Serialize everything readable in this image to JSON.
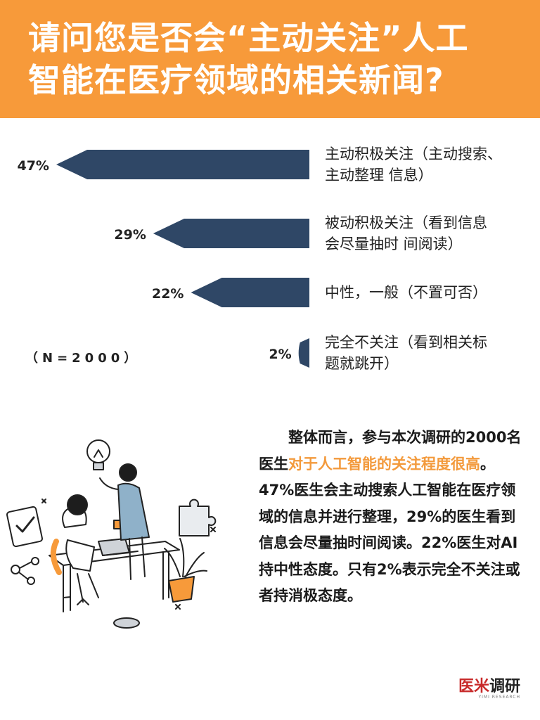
{
  "header": {
    "title_line1": "请问您是否会“主动关注”人工",
    "title_line2": "智能在医疗领域的相关新闻?"
  },
  "chart_data": {
    "type": "bar",
    "orientation": "horizontal",
    "categories": [
      "主动积极关注（主动搜索、主动整理 信息）",
      "被动积极关注（看到信息会尽量抽时 间阅读）",
      "中性，一般（不置可否）",
      "完全不关注（看到相关标题就跳开）"
    ],
    "category_lines": [
      [
        "主动积极关注（主动搜索、",
        "主动整理 信息）"
      ],
      [
        "被动积极关注（看到信息",
        "会尽量抽时 间阅读）"
      ],
      [
        "中性，一般（不置可否）"
      ],
      [
        "完全不关注（看到相关标",
        "题就跳开）"
      ]
    ],
    "values": [
      47,
      29,
      22,
      2
    ],
    "value_labels": [
      "47%",
      "29%",
      "22%",
      "2%"
    ],
    "unit": "%",
    "bar_color": "#2f4766",
    "sample_note": "（N=2000）"
  },
  "summary": {
    "part1": "整体而言，参与本次调研的2000名医生",
    "highlight": "对于人工智能的关注程度很高",
    "part2": "。47%医生会主动搜索人工智能在医疗领域的信息并进行整理，29%的医生看到信息会尽量抽时间阅读。22%医生对AI持中性态度。只有2%表示完全不关注或者持消极态度。",
    "highlight_color": "#f39a3c"
  },
  "logo": {
    "red": "医米",
    "dark": "调研",
    "sub": "YIMI RESEARCH"
  },
  "colors": {
    "header_bg": "#f79a3a",
    "bar": "#2f4766",
    "accent": "#f39a3c"
  }
}
